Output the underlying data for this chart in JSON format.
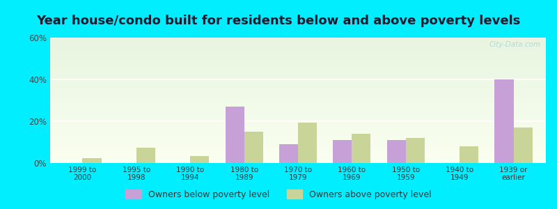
{
  "title": "Year house/condo built for residents below and above poverty levels",
  "categories": [
    "1999 to\n2000",
    "1995 to\n1998",
    "1990 to\n1994",
    "1980 to\n1989",
    "1970 to\n1979",
    "1960 to\n1969",
    "1950 to\n1959",
    "1940 to\n1949",
    "1939 or\nearlier"
  ],
  "below_poverty": [
    0.0,
    0.0,
    0.0,
    27.0,
    9.0,
    11.0,
    11.0,
    0.0,
    40.0
  ],
  "above_poverty": [
    2.5,
    7.5,
    3.5,
    15.0,
    19.5,
    14.0,
    12.0,
    8.0,
    17.0
  ],
  "below_color": "#c8a0d8",
  "above_color": "#c8d498",
  "ylim": [
    0,
    60
  ],
  "yticks": [
    0,
    20,
    40,
    60
  ],
  "ytick_labels": [
    "0%",
    "20%",
    "40%",
    "60%"
  ],
  "outer_bg": "#00eeff",
  "title_fontsize": 13,
  "legend_below_label": "Owners below poverty level",
  "legend_above_label": "Owners above poverty level",
  "watermark": "City-Data.com"
}
